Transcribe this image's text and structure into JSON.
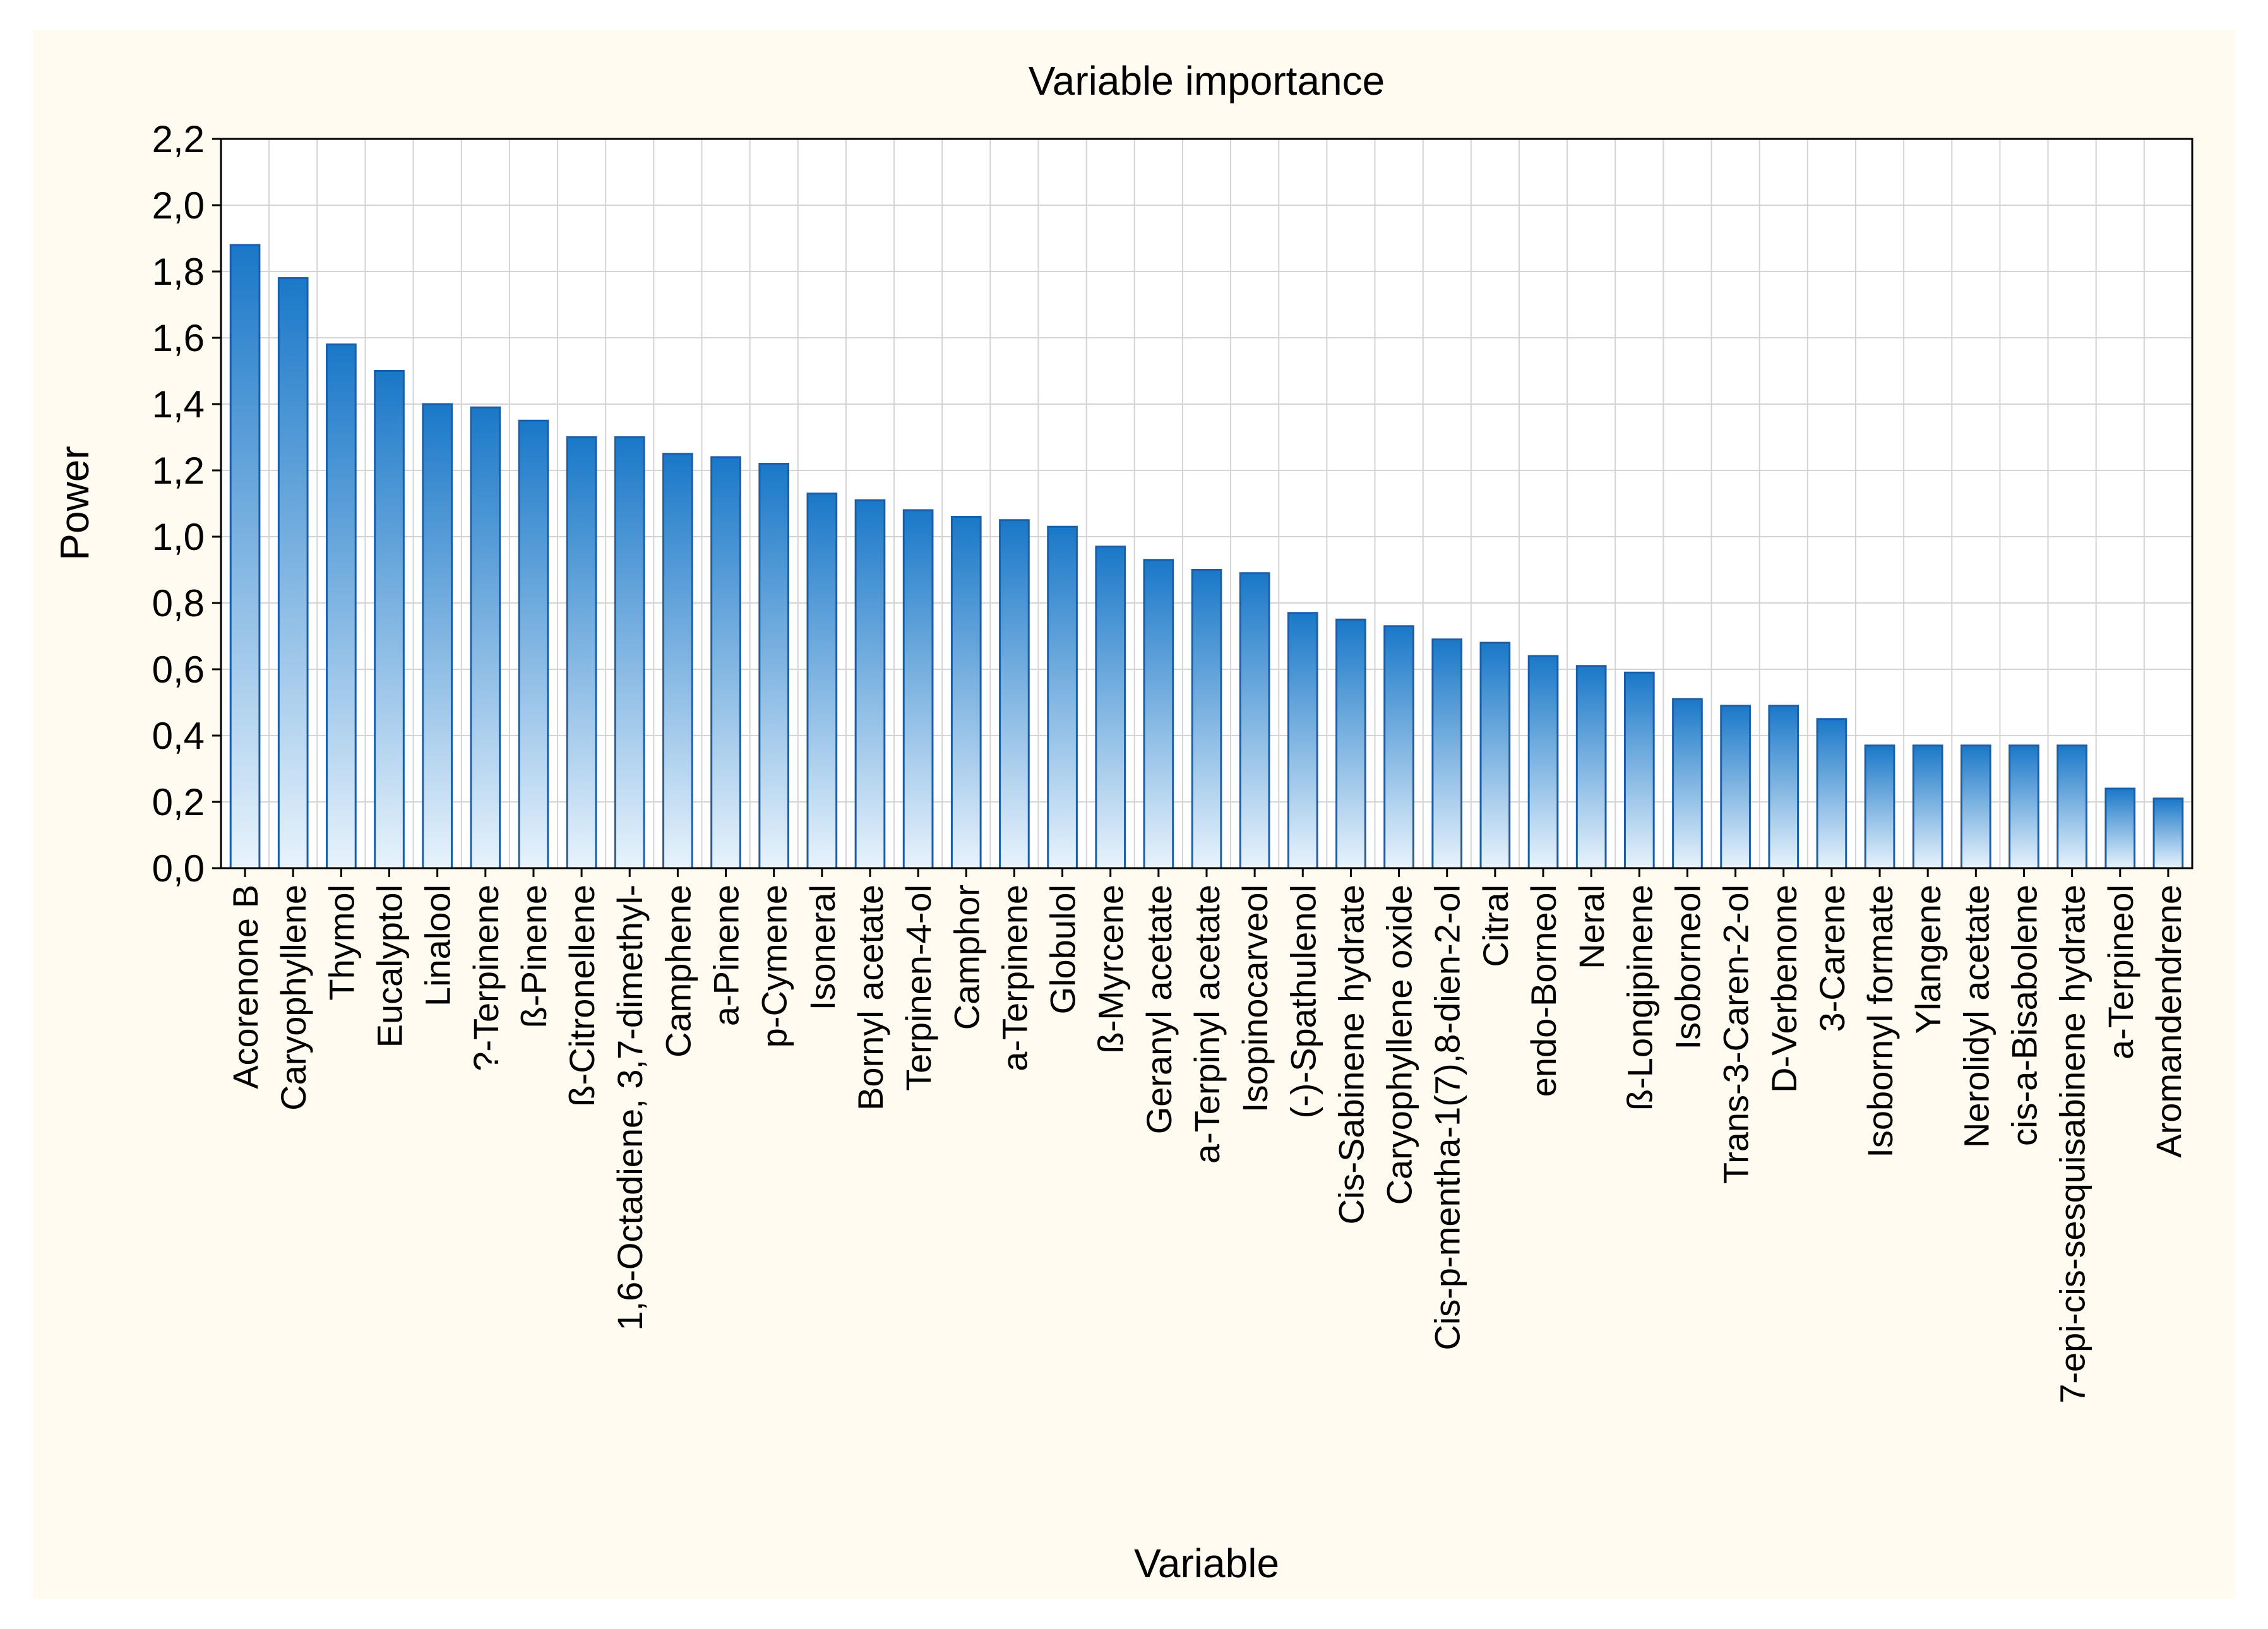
{
  "chart_data": {
    "type": "bar",
    "title": "Variable importance",
    "xlabel": "Variable",
    "ylabel": "Power",
    "ylim": [
      0,
      2.2
    ],
    "yticks": [
      "0,0",
      "0,2",
      "0,4",
      "0,6",
      "0,8",
      "1,0",
      "1,2",
      "1,4",
      "1,6",
      "1,8",
      "2,0",
      "2,2"
    ],
    "grid": true,
    "categories": [
      "Acorenone B",
      "Caryophyllene",
      "Thymol",
      "Eucalyptol",
      "Linalool",
      "?-Terpinene",
      "ß-Pinene",
      "ß-Citronellene",
      "1,6-Octadiene, 3,7-dimethyl-",
      "Camphene",
      "a-Pinene",
      "p-Cymene",
      "Isoneral",
      "Bornyl acetate",
      "Terpinen-4-ol",
      "Camphor",
      "a-Terpinene",
      "Globulol",
      "ß-Myrcene",
      "Geranyl acetate",
      "a-Terpinyl acetate",
      "Isopinocarveol",
      "(-)-Spathulenol",
      "Cis-Sabinene hydrate",
      "Caryophyllene oxide",
      "Cis-p-mentha-1(7),8-dien-2-ol",
      "Citral",
      "endo-Borneol",
      "Neral",
      "ß-Longipinene",
      "Isoborneol",
      "Trans-3-Caren-2-ol",
      "D-Verbenone",
      "3-Carene",
      "Isobornyl formate",
      "Ylangene",
      "Nerolidyl acetate",
      "cis-a-Bisabolene",
      "7-epi-cis-sesquisabinene hydrate",
      "a-Terpineol",
      "Aromandendrene"
    ],
    "values": [
      1.88,
      1.78,
      1.58,
      1.5,
      1.4,
      1.39,
      1.35,
      1.3,
      1.3,
      1.25,
      1.24,
      1.22,
      1.13,
      1.11,
      1.08,
      1.06,
      1.05,
      1.03,
      0.97,
      0.93,
      0.9,
      0.89,
      0.77,
      0.75,
      0.73,
      0.69,
      0.68,
      0.64,
      0.61,
      0.59,
      0.51,
      0.49,
      0.49,
      0.45,
      0.37,
      0.37,
      0.37,
      0.37,
      0.37,
      0.24,
      0.21
    ],
    "colors": {
      "frame_background": "#fffbf0",
      "plot_background": "#ffffff",
      "grid": "#d4d4d4",
      "axis": "#000000",
      "bar_top": "#1a78c8",
      "bar_bottom": "#e8f3fc",
      "bar_edge": "#1a5fa8"
    }
  }
}
